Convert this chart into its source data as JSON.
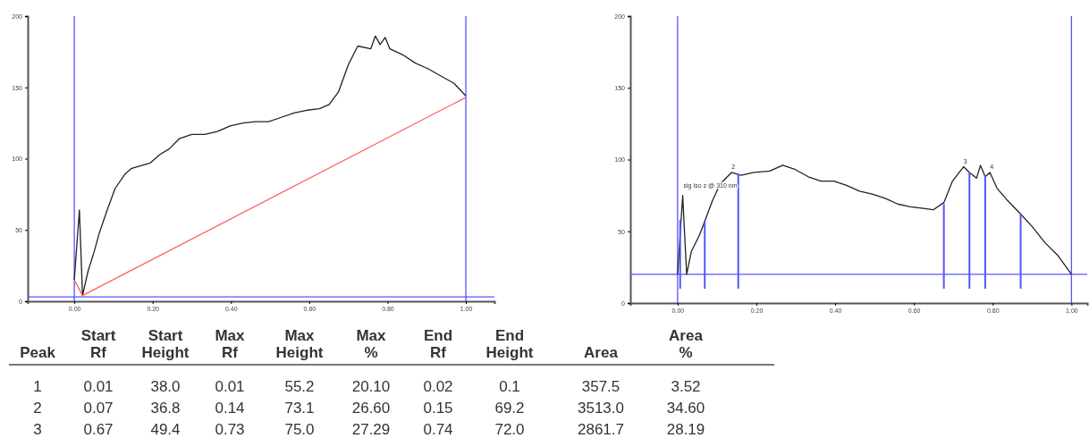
{
  "chart_data": [
    {
      "type": "line",
      "xlim": [
        -0.119,
        1.073
      ],
      "ylim": [
        0,
        200
      ],
      "xticks": [
        {
          "value": 0,
          "label": "0.00"
        },
        {
          "value": 0.2,
          "label": "0.20"
        },
        {
          "value": 0.4,
          "label": "0.40"
        },
        {
          "value": 0.6,
          "label": "0.60"
        },
        {
          "value": 0.8,
          "label": "0.80"
        },
        {
          "value": 1,
          "label": "1.00"
        }
      ],
      "yticks": [
        0,
        50,
        100,
        150,
        200
      ],
      "series": [
        {
          "type": "line",
          "color": "#222222",
          "x": [
            0,
            0.013,
            0.021,
            0.035,
            0.051,
            0.064,
            0.084,
            0.104,
            0.129,
            0.145,
            0.17,
            0.194,
            0.219,
            0.243,
            0.268,
            0.3,
            0.333,
            0.365,
            0.398,
            0.431,
            0.463,
            0.496,
            0.529,
            0.561,
            0.594,
            0.626,
            0.651,
            0.675,
            0.7,
            0.724,
            0.757,
            0.769,
            0.781,
            0.794,
            0.806,
            0.838,
            0.871,
            0.904,
            0.936,
            0.969,
            1.0
          ],
          "values": [
            15,
            64,
            4,
            21,
            35,
            48,
            64,
            79,
            89,
            93,
            95,
            97,
            103,
            107,
            114,
            117,
            117,
            119,
            123,
            125,
            126,
            126,
            129,
            132,
            134,
            135,
            138,
            147,
            166,
            179,
            177,
            186,
            180,
            185,
            177,
            173,
            167,
            163,
            158,
            153,
            144
          ]
        },
        {
          "type": "line",
          "color": "#ff6060",
          "x": [
            0,
            0.021,
            1.0
          ],
          "values": [
            15,
            4,
            143
          ]
        }
      ],
      "ref_lines": [
        {
          "axis": "x",
          "value": 0,
          "color": "#5555ff"
        },
        {
          "axis": "x",
          "value": 1,
          "color": "#5555ff"
        },
        {
          "axis": "y",
          "value": 3,
          "color": "#5555ff"
        }
      ]
    },
    {
      "type": "line",
      "xlim": [
        -0.12,
        1.04
      ],
      "ylim": [
        0,
        200
      ],
      "xticks": [
        {
          "value": 0,
          "label": "0.00"
        },
        {
          "value": 0.2,
          "label": "0.20"
        },
        {
          "value": 0.4,
          "label": "0.40"
        },
        {
          "value": 0.6,
          "label": "0.60"
        },
        {
          "value": 0.8,
          "label": "0.80"
        },
        {
          "value": 1,
          "label": "1.00"
        }
      ],
      "yticks": [
        0,
        50,
        100,
        150,
        200
      ],
      "series": [
        {
          "type": "line",
          "color": "#222222",
          "x": [
            0,
            0.013,
            0.016,
            0.023,
            0.035,
            0.055,
            0.069,
            0.088,
            0.108,
            0.137,
            0.161,
            0.193,
            0.234,
            0.267,
            0.299,
            0.332,
            0.364,
            0.397,
            0.429,
            0.462,
            0.494,
            0.527,
            0.559,
            0.592,
            0.624,
            0.649,
            0.676,
            0.698,
            0.726,
            0.741,
            0.759,
            0.769,
            0.781,
            0.793,
            0.811,
            0.836,
            0.871,
            0.901,
            0.933,
            0.966,
            1.0
          ],
          "values": [
            20,
            75,
            58,
            20,
            36,
            47,
            57,
            71,
            83,
            91,
            89,
            91,
            92,
            96,
            93,
            88,
            85,
            85,
            82,
            78,
            76,
            73,
            69,
            67,
            66,
            65,
            70,
            85,
            95,
            91,
            87,
            96,
            88,
            91,
            80,
            72,
            62,
            53,
            42,
            33,
            20
          ]
        },
        {
          "type": "bar",
          "color": "#5555ff",
          "x": [
            0.0065,
            0.069,
            0.154,
            0.676,
            0.741,
            0.781,
            0.871
          ],
          "base": [
            10,
            10,
            10,
            10,
            10,
            10,
            10
          ],
          "values": [
            48,
            47,
            80,
            59,
            81,
            79,
            52
          ]
        }
      ],
      "ref_lines": [
        {
          "axis": "x",
          "value": 0,
          "color": "#5555ff"
        },
        {
          "axis": "x",
          "value": 1,
          "color": "#5555ff"
        },
        {
          "axis": "y",
          "value": 20,
          "color": "#5555ff"
        }
      ],
      "annotations": [
        {
          "text": "sig Iso z @ 310 nm",
          "x": 0.015,
          "y": 78
        },
        {
          "text": "2",
          "x": 0.137,
          "y": 91
        },
        {
          "text": "3",
          "x": 0.726,
          "y": 95
        },
        {
          "text": "4",
          "x": 0.793,
          "y": 91
        }
      ]
    },
    {
      "type": "other",
      "annotations": [
        "Peak",
        "Start Rf",
        "Start Height",
        "Max Rf",
        "Max Height",
        "Max %",
        "End Rf",
        "End Height",
        "Area",
        "Area %",
        "1",
        "0.01",
        "38.0",
        "0.01",
        "55.2",
        "20.10",
        "0.02",
        "0.1",
        "357.5",
        "3.52",
        "2",
        "0.07",
        "36.8",
        "0.14",
        "73.1",
        "26.60",
        "0.15",
        "69.2",
        "3513.0",
        "34.60",
        "3",
        "0.67",
        "49.4",
        "0.73",
        "75.0",
        "27.29",
        "0.74",
        "72.0",
        "2861.7",
        "28.19"
      ]
    }
  ]
}
